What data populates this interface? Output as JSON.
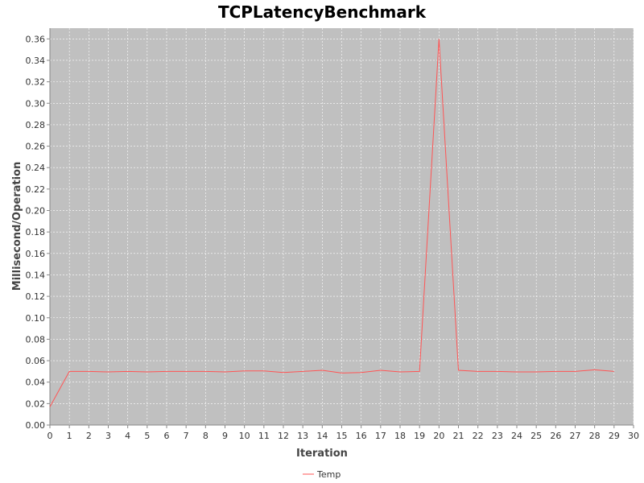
{
  "chart_data": {
    "type": "line",
    "title": "TCPLatencyBenchmark",
    "xlabel": "Iteration",
    "ylabel": "Millisecond/Operation",
    "xlim": [
      0,
      30
    ],
    "ylim": [
      0,
      0.37
    ],
    "x_ticks": [
      0,
      1,
      2,
      3,
      4,
      5,
      6,
      7,
      8,
      9,
      10,
      11,
      12,
      13,
      14,
      15,
      16,
      17,
      18,
      19,
      20,
      21,
      22,
      23,
      24,
      25,
      26,
      27,
      28,
      29,
      30
    ],
    "y_ticks": [
      "0.00",
      "0.02",
      "0.04",
      "0.06",
      "0.08",
      "0.10",
      "0.12",
      "0.14",
      "0.16",
      "0.18",
      "0.20",
      "0.22",
      "0.24",
      "0.26",
      "0.28",
      "0.30",
      "0.32",
      "0.34",
      "0.36"
    ],
    "grid": true,
    "legend_position": "bottom-center",
    "plot_background": "#c0c0c0",
    "series": [
      {
        "name": "Temp",
        "color": "#ff5555",
        "x": [
          0,
          1,
          2,
          3,
          4,
          5,
          6,
          7,
          8,
          9,
          10,
          11,
          12,
          13,
          14,
          15,
          16,
          17,
          18,
          19,
          20,
          21,
          22,
          23,
          24,
          25,
          26,
          27,
          28,
          29
        ],
        "values": [
          0.017,
          0.05,
          0.05,
          0.0495,
          0.05,
          0.0495,
          0.05,
          0.05,
          0.05,
          0.0495,
          0.0505,
          0.0505,
          0.049,
          0.05,
          0.051,
          0.0485,
          0.049,
          0.051,
          0.0495,
          0.05,
          0.36,
          0.051,
          0.05,
          0.05,
          0.0495,
          0.0495,
          0.05,
          0.05,
          0.0515,
          0.05
        ]
      }
    ]
  }
}
